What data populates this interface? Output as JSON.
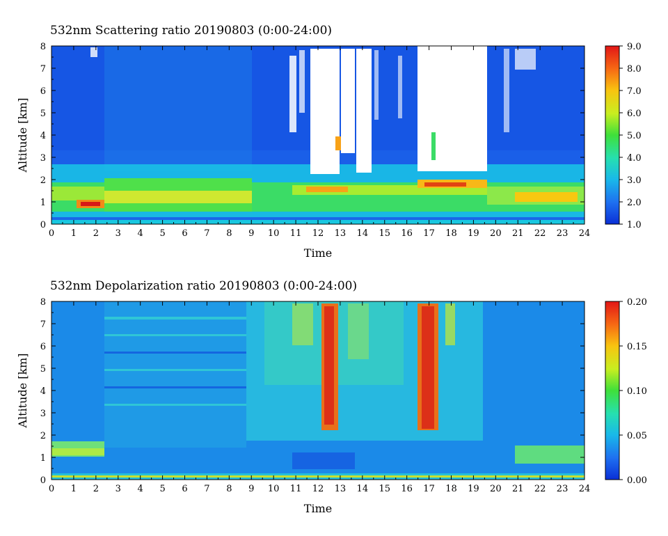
{
  "chart_data": [
    {
      "type": "heatmap",
      "title": "532nm Scattering ratio  20190803 (0:00-24:00)",
      "xlabel": "Time",
      "ylabel": "Altitude [km]",
      "x_ticks": [
        "0",
        "1",
        "2",
        "3",
        "4",
        "5",
        "6",
        "7",
        "8",
        "9",
        "10",
        "11",
        "12",
        "13",
        "14",
        "15",
        "16",
        "17",
        "18",
        "19",
        "20",
        "21",
        "22",
        "23",
        "24"
      ],
      "y_ticks": [
        "0",
        "1",
        "2",
        "3",
        "4",
        "5",
        "6",
        "7",
        "8"
      ],
      "xlim": [
        0,
        24
      ],
      "ylim": [
        0,
        8
      ],
      "colorbar": {
        "min": 1.0,
        "max": 9.0,
        "tick_labels": [
          "1.0",
          "2.0",
          "3.0",
          "4.0",
          "5.0",
          "6.0",
          "7.0",
          "8.0",
          "9.0"
        ]
      }
    },
    {
      "type": "heatmap",
      "title": "532nm Depolarization ratio  20190803 (0:00-24:00)",
      "xlabel": "Time",
      "ylabel": "Altitude [km]",
      "x_ticks": [
        "0",
        "1",
        "2",
        "3",
        "4",
        "5",
        "6",
        "7",
        "8",
        "9",
        "10",
        "11",
        "12",
        "13",
        "14",
        "15",
        "16",
        "17",
        "18",
        "19",
        "20",
        "21",
        "22",
        "23",
        "24"
      ],
      "y_ticks": [
        "0",
        "1",
        "2",
        "3",
        "4",
        "5",
        "6",
        "7",
        "8"
      ],
      "xlim": [
        0,
        24
      ],
      "ylim": [
        0,
        8
      ],
      "colorbar": {
        "min": 0.0,
        "max": 0.2,
        "tick_labels": [
          "0.00",
          "0.05",
          "0.10",
          "0.15",
          "0.20"
        ]
      }
    }
  ]
}
